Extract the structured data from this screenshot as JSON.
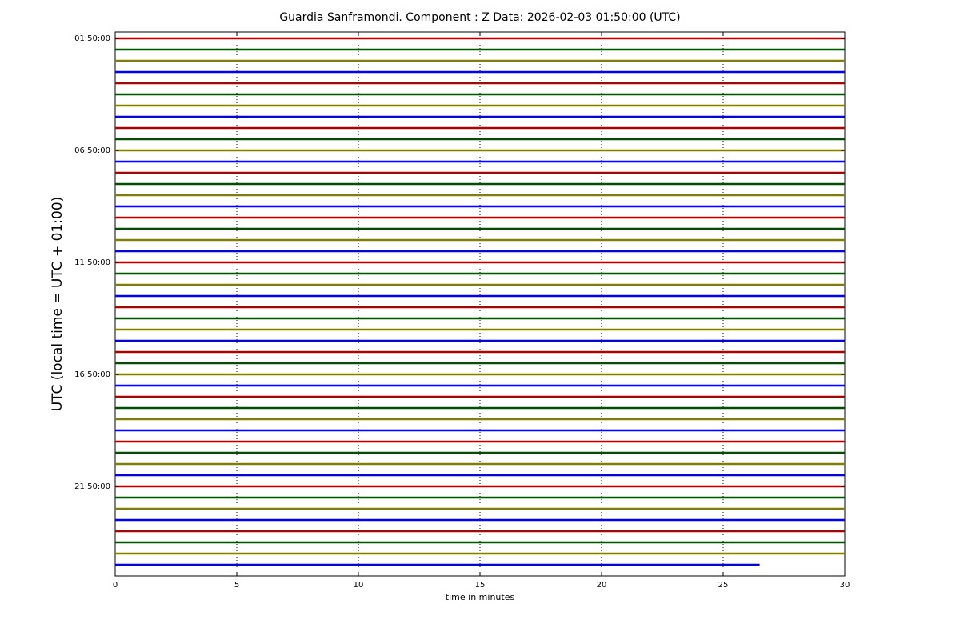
{
  "chart_data": {
    "type": "helicorder",
    "title": "Guardia Sanframondi. Component : Z Data: 2026-02-03 01:50:00 (UTC)",
    "x_label": "time in minutes",
    "y_label": "UTC (local time = UTC + 01:00)",
    "xlim": [
      0,
      30
    ],
    "xticks": [
      0,
      5,
      10,
      15,
      20,
      25,
      30
    ],
    "grid": true,
    "colors": [
      "#b00000",
      "#005000",
      "#808000",
      "#0000ff"
    ],
    "categories": [
      "01:50:00",
      null,
      null,
      null,
      null,
      null,
      null,
      null,
      null,
      null,
      "06:50:00",
      null,
      null,
      null,
      null,
      null,
      null,
      null,
      null,
      null,
      "11:50:00",
      null,
      null,
      null,
      null,
      null,
      null,
      null,
      null,
      null,
      "16:50:00",
      null,
      null,
      null,
      null,
      null,
      null,
      null,
      null,
      null,
      "21:50:00",
      null,
      null,
      null,
      null,
      null,
      null,
      null
    ],
    "trace_ends": [
      30,
      30,
      30,
      30,
      30,
      30,
      30,
      30,
      30,
      30,
      30,
      30,
      30,
      30,
      30,
      30,
      30,
      30,
      30,
      30,
      30,
      30,
      30,
      30,
      30,
      30,
      30,
      30,
      30,
      30,
      30,
      30,
      30,
      30,
      30,
      30,
      30,
      30,
      30,
      30,
      30,
      30,
      30,
      30,
      30,
      30,
      30,
      26.5
    ]
  }
}
